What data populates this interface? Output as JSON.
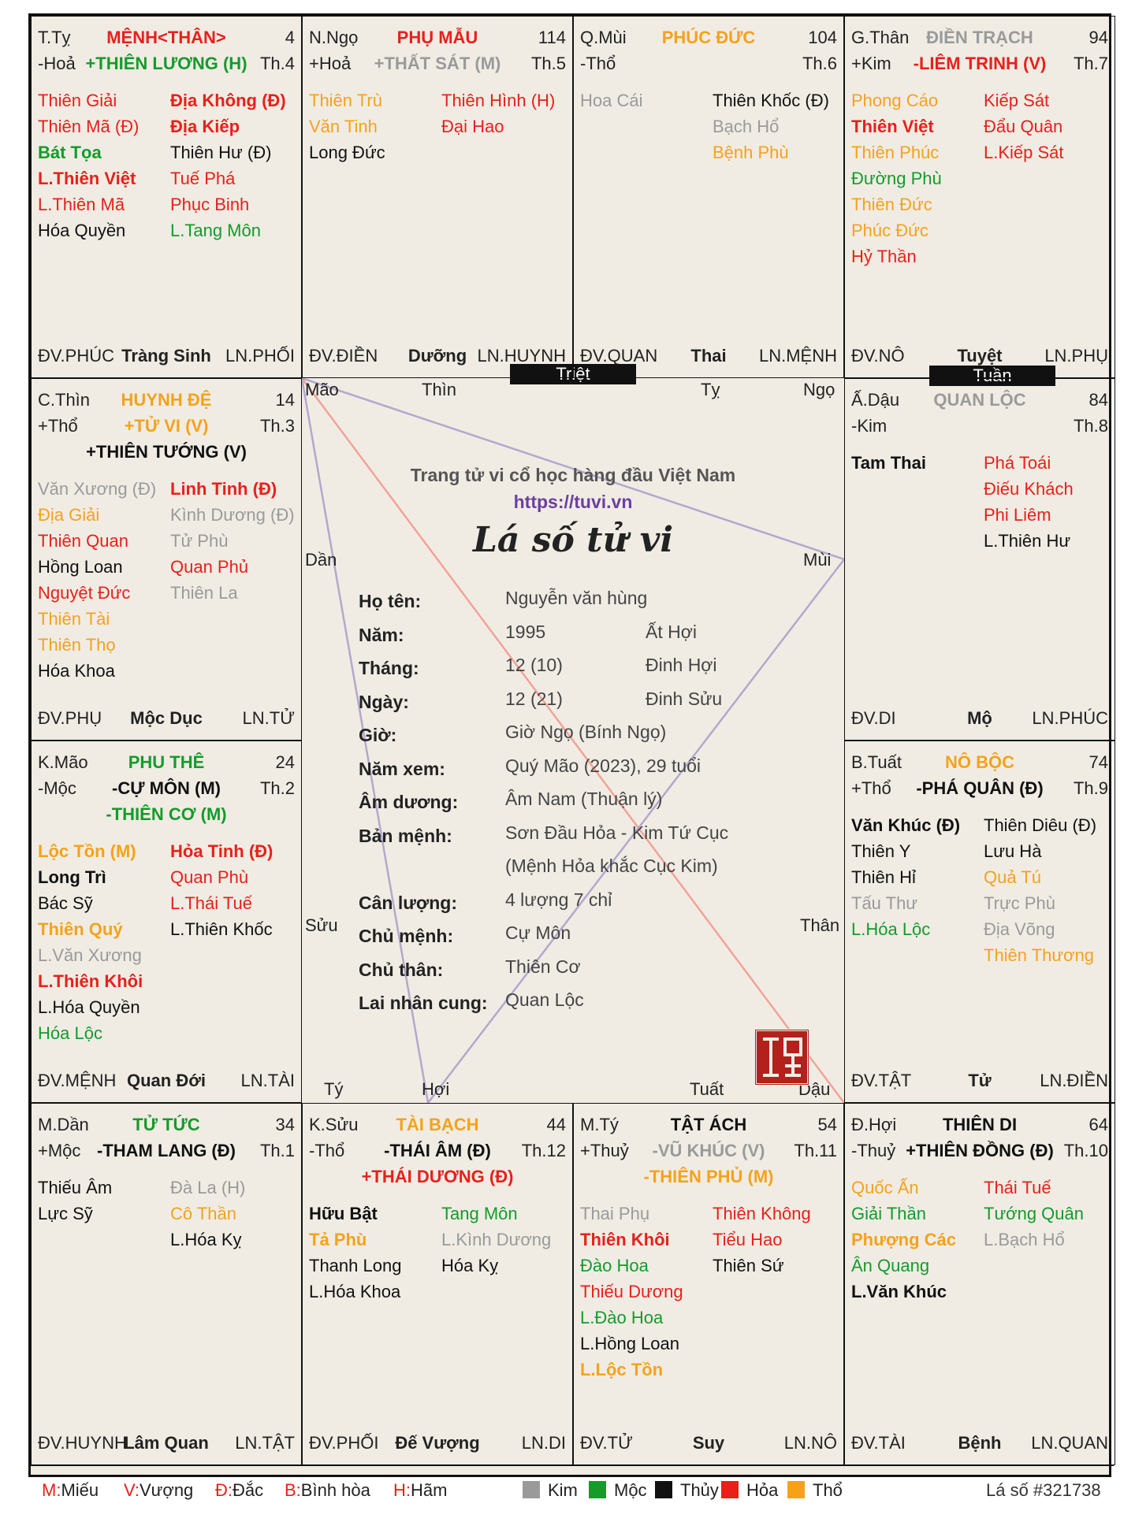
{
  "colors": {
    "red": "#e8201a",
    "green": "#149b2a",
    "black": "#111111",
    "gray": "#9a9a9a",
    "orange": "#f5a21a"
  },
  "palaces": [
    {
      "id": "ty",
      "pos": [
        0,
        0
      ],
      "ho": "T.Tỵ",
      "elem": "-Hoả",
      "name": "MỆNH<THÂN>",
      "name_color": "red",
      "num": "4",
      "major": [
        {
          "t": "+THIÊN LƯƠNG (H)",
          "c": "green"
        }
      ],
      "th": "Th.4",
      "left": [
        {
          "t": "Thiên Giải",
          "c": "red"
        },
        {
          "t": "Thiên Mã (Đ)",
          "c": "red"
        },
        {
          "t": "Bát Tọa",
          "c": "green",
          "b": true
        },
        {
          "t": "L.Thiên Việt",
          "c": "red",
          "b": true
        },
        {
          "t": "L.Thiên Mã",
          "c": "red"
        },
        {
          "t": "Hóa Quyền",
          "c": "black"
        }
      ],
      "right": [
        {
          "t": "Địa Không (Đ)",
          "c": "red",
          "b": true
        },
        {
          "t": "Địa Kiếp",
          "c": "red",
          "b": true
        },
        {
          "t": "Thiên Hư (Đ)",
          "c": "black"
        },
        {
          "t": "Tuế Phá",
          "c": "red"
        },
        {
          "t": "Phục Binh",
          "c": "red"
        },
        {
          "t": "L.Tang Môn",
          "c": "green"
        }
      ],
      "dv": "ĐV.PHÚC",
      "stage": "Tràng Sinh",
      "ln": "LN.PHỐI"
    },
    {
      "id": "ngo",
      "pos": [
        1,
        0
      ],
      "ho": "N.Ngọ",
      "elem": "+Hoả",
      "name": "PHỤ MẪU",
      "name_color": "red",
      "num": "114",
      "major": [
        {
          "t": "+THẤT SÁT (M)",
          "c": "gray"
        }
      ],
      "th": "Th.5",
      "left": [
        {
          "t": "Thiên Trù",
          "c": "orange"
        },
        {
          "t": "Văn Tinh",
          "c": "orange"
        },
        {
          "t": "Long Đức",
          "c": "black"
        }
      ],
      "right": [
        {
          "t": "Thiên Hình (H)",
          "c": "red"
        },
        {
          "t": "Đại Hao",
          "c": "red"
        }
      ],
      "dv": "ĐV.ĐIỀN",
      "stage": "Dưỡng",
      "ln": "LN.HUYNH"
    },
    {
      "id": "mui",
      "pos": [
        2,
        0
      ],
      "ho": "Q.Mùi",
      "elem": "-Thổ",
      "name": "PHÚC ĐỨC",
      "name_color": "orange",
      "num": "104",
      "major": [],
      "th": "Th.6",
      "left": [
        {
          "t": "Hoa Cái",
          "c": "gray"
        }
      ],
      "right": [
        {
          "t": "Thiên Khốc (Đ)",
          "c": "black"
        },
        {
          "t": "Bạch Hổ",
          "c": "gray"
        },
        {
          "t": "Bệnh Phù",
          "c": "orange"
        }
      ],
      "dv": "ĐV.QUAN",
      "stage": "Thai",
      "ln": "LN.MỆNH"
    },
    {
      "id": "than",
      "pos": [
        3,
        0
      ],
      "ho": "G.Thân",
      "elem": "+Kim",
      "name": "ĐIỀN TRẠCH",
      "name_color": "gray",
      "num": "94",
      "major": [
        {
          "t": "-LIÊM TRINH (V)",
          "c": "red"
        }
      ],
      "th": "Th.7",
      "left": [
        {
          "t": "Phong Cáo",
          "c": "orange"
        },
        {
          "t": "Thiên Việt",
          "c": "red",
          "b": true
        },
        {
          "t": "Thiên Phúc",
          "c": "orange"
        },
        {
          "t": "Đường Phù",
          "c": "green"
        },
        {
          "t": "Thiên Đức",
          "c": "orange"
        },
        {
          "t": "Phúc Đức",
          "c": "orange"
        },
        {
          "t": "Hỷ Thần",
          "c": "red"
        }
      ],
      "right": [
        {
          "t": "Kiếp Sát",
          "c": "red"
        },
        {
          "t": "Đẩu Quân",
          "c": "red"
        },
        {
          "t": "L.Kiếp Sát",
          "c": "red"
        }
      ],
      "dv": "ĐV.NÔ",
      "stage": "Tuyệt",
      "ln": "LN.PHỤ"
    },
    {
      "id": "thin",
      "pos": [
        0,
        1
      ],
      "ho": "C.Thìn",
      "elem": "+Thổ",
      "name": "HUYNH ĐỆ",
      "name_color": "orange",
      "num": "14",
      "major": [
        {
          "t": "+TỬ VI (V)",
          "c": "orange"
        },
        {
          "t": "+THIÊN TƯỚNG (V)",
          "c": "black"
        }
      ],
      "th": "Th.3",
      "left": [
        {
          "t": "Văn Xương (Đ)",
          "c": "gray"
        },
        {
          "t": "Địa Giải",
          "c": "orange"
        },
        {
          "t": "Thiên Quan",
          "c": "red"
        },
        {
          "t": "Hồng Loan",
          "c": "black"
        },
        {
          "t": "Nguyệt Đức",
          "c": "red"
        },
        {
          "t": "Thiên Tài",
          "c": "orange"
        },
        {
          "t": "Thiên Thọ",
          "c": "orange"
        },
        {
          "t": "Hóa Khoa",
          "c": "black"
        }
      ],
      "right": [
        {
          "t": "Linh Tinh (Đ)",
          "c": "red",
          "b": true
        },
        {
          "t": "Kình Dương (Đ)",
          "c": "gray"
        },
        {
          "t": "Tử Phù",
          "c": "gray"
        },
        {
          "t": "Quan Phủ",
          "c": "red"
        },
        {
          "t": "Thiên La",
          "c": "gray"
        }
      ],
      "dv": "ĐV.PHỤ",
      "stage": "Mộc Dục",
      "ln": "LN.TỬ"
    },
    {
      "id": "dau",
      "pos": [
        3,
        1
      ],
      "ho": "Ấ.Dậu",
      "elem": "-Kim",
      "name": "QUAN LỘC",
      "name_color": "gray",
      "num": "84",
      "major": [],
      "th": "Th.8",
      "left": [
        {
          "t": "Tam Thai",
          "c": "black",
          "b": true
        }
      ],
      "right": [
        {
          "t": "Phá Toái",
          "c": "red"
        },
        {
          "t": "Điếu Khách",
          "c": "red"
        },
        {
          "t": "Phi Liêm",
          "c": "red"
        },
        {
          "t": "L.Thiên Hư",
          "c": "black"
        }
      ],
      "dv": "ĐV.DI",
      "stage": "Mộ",
      "ln": "LN.PHÚC"
    },
    {
      "id": "mao",
      "pos": [
        0,
        2
      ],
      "ho": "K.Mão",
      "elem": "-Mộc",
      "name": "PHU THÊ",
      "name_color": "green",
      "num": "24",
      "major": [
        {
          "t": "-CỰ MÔN (M)",
          "c": "black"
        },
        {
          "t": "-THIÊN CƠ (M)",
          "c": "green"
        }
      ],
      "th": "Th.2",
      "left": [
        {
          "t": "Lộc Tồn (M)",
          "c": "orange",
          "b": true
        },
        {
          "t": "Long Trì",
          "c": "black",
          "b": true
        },
        {
          "t": "Bác Sỹ",
          "c": "black"
        },
        {
          "t": "Thiên Quý",
          "c": "orange",
          "b": true
        },
        {
          "t": "L.Văn Xương",
          "c": "gray"
        },
        {
          "t": "L.Thiên Khôi",
          "c": "red",
          "b": true
        },
        {
          "t": "L.Hóa Quyền",
          "c": "black"
        },
        {
          "t": "Hóa Lộc",
          "c": "green"
        }
      ],
      "right": [
        {
          "t": "Hỏa Tinh (Đ)",
          "c": "red",
          "b": true
        },
        {
          "t": "Quan Phù",
          "c": "red"
        },
        {
          "t": "L.Thái Tuế",
          "c": "red"
        },
        {
          "t": "L.Thiên Khốc",
          "c": "black"
        }
      ],
      "dv": "ĐV.MỆNH",
      "stage": "Quan Đới",
      "ln": "LN.TÀI"
    },
    {
      "id": "tuat",
      "pos": [
        3,
        2
      ],
      "ho": "B.Tuất",
      "elem": "+Thổ",
      "name": "NÔ BỘC",
      "name_color": "orange",
      "num": "74",
      "major": [
        {
          "t": "-PHÁ QUÂN (Đ)",
          "c": "black"
        }
      ],
      "th": "Th.9",
      "left": [
        {
          "t": "Văn Khúc (Đ)",
          "c": "black",
          "b": true
        },
        {
          "t": "Thiên Y",
          "c": "black"
        },
        {
          "t": "Thiên Hỉ",
          "c": "black"
        },
        {
          "t": "Tấu Thư",
          "c": "gray"
        },
        {
          "t": "L.Hóa Lộc",
          "c": "green"
        }
      ],
      "right": [
        {
          "t": "Thiên Diêu (Đ)",
          "c": "black"
        },
        {
          "t": "Lưu Hà",
          "c": "black"
        },
        {
          "t": "Quả Tú",
          "c": "orange"
        },
        {
          "t": "Trực Phù",
          "c": "gray"
        },
        {
          "t": "Địa Võng",
          "c": "gray"
        },
        {
          "t": "Thiên Thương",
          "c": "orange"
        }
      ],
      "dv": "ĐV.TẬT",
      "stage": "Tử",
      "ln": "LN.ĐIỀN"
    },
    {
      "id": "dan",
      "pos": [
        0,
        3
      ],
      "ho": "M.Dần",
      "elem": "+Mộc",
      "name": "TỬ TỨC",
      "name_color": "green",
      "num": "34",
      "major": [
        {
          "t": "-THAM LANG (Đ)",
          "c": "black"
        }
      ],
      "th": "Th.1",
      "left": [
        {
          "t": "Thiếu Âm",
          "c": "black"
        },
        {
          "t": "Lực Sỹ",
          "c": "black"
        }
      ],
      "right": [
        {
          "t": "Đà La (H)",
          "c": "gray"
        },
        {
          "t": "Cô Thần",
          "c": "orange"
        },
        {
          "t": "L.Hóa Kỵ",
          "c": "black"
        }
      ],
      "dv": "ĐV.HUYNH",
      "stage": "Lâm Quan",
      "ln": "LN.TẬT"
    },
    {
      "id": "suu",
      "pos": [
        1,
        3
      ],
      "ho": "K.Sửu",
      "elem": "-Thổ",
      "name": "TÀI BẠCH",
      "name_color": "orange",
      "num": "44",
      "major": [
        {
          "t": "-THÁI ÂM (Đ)",
          "c": "black"
        },
        {
          "t": "+THÁI DƯƠNG (Đ)",
          "c": "red"
        }
      ],
      "th": "Th.12",
      "left": [
        {
          "t": "Hữu Bật",
          "c": "black",
          "b": true
        },
        {
          "t": "Tả Phù",
          "c": "orange",
          "b": true
        },
        {
          "t": "Thanh Long",
          "c": "black"
        },
        {
          "t": "L.Hóa Khoa",
          "c": "black"
        }
      ],
      "right": [
        {
          "t": "Tang Môn",
          "c": "green"
        },
        {
          "t": "L.Kình Dương",
          "c": "gray"
        },
        {
          "t": "Hóa Kỵ",
          "c": "black"
        }
      ],
      "dv": "ĐV.PHỐI",
      "stage": "Đế Vượng",
      "ln": "LN.DI"
    },
    {
      "id": "tyy",
      "pos": [
        2,
        3
      ],
      "ho": "M.Tý",
      "elem": "+Thuỷ",
      "name": "TẬT ÁCH",
      "name_color": "black",
      "num": "54",
      "major": [
        {
          "t": "-VŨ KHÚC (V)",
          "c": "gray"
        },
        {
          "t": "-THIÊN PHỦ (M)",
          "c": "orange"
        }
      ],
      "th": "Th.11",
      "left": [
        {
          "t": "Thai Phụ",
          "c": "gray"
        },
        {
          "t": "Thiên Khôi",
          "c": "red",
          "b": true
        },
        {
          "t": "Đào Hoa",
          "c": "green"
        },
        {
          "t": "Thiếu Dương",
          "c": "red"
        },
        {
          "t": "L.Đào Hoa",
          "c": "green"
        },
        {
          "t": "L.Hồng Loan",
          "c": "black"
        },
        {
          "t": "L.Lộc Tồn",
          "c": "orange",
          "b": true
        }
      ],
      "right": [
        {
          "t": "Thiên Không",
          "c": "red"
        },
        {
          "t": "Tiểu Hao",
          "c": "red"
        },
        {
          "t": "Thiên Sứ",
          "c": "black"
        }
      ],
      "dv": "ĐV.TỬ",
      "stage": "Suy",
      "ln": "LN.NÔ"
    },
    {
      "id": "hoi",
      "pos": [
        3,
        3
      ],
      "ho": "Đ.Hợi",
      "elem": "-Thuỷ",
      "name": "THIÊN DI",
      "name_color": "black",
      "num": "64",
      "major": [
        {
          "t": "+THIÊN ĐỒNG (Đ)",
          "c": "black"
        }
      ],
      "th": "Th.10",
      "left": [
        {
          "t": "Quốc Ấn",
          "c": "orange"
        },
        {
          "t": "Giải Thần",
          "c": "green"
        },
        {
          "t": "Phượng Các",
          "c": "orange",
          "b": true
        },
        {
          "t": "Ân Quang",
          "c": "green"
        },
        {
          "t": "L.Văn Khúc",
          "c": "black",
          "b": true
        }
      ],
      "right": [
        {
          "t": "Thái Tuế",
          "c": "red"
        },
        {
          "t": "Tướng Quân",
          "c": "green"
        },
        {
          "t": "L.Bạch Hổ",
          "c": "gray"
        }
      ],
      "dv": "ĐV.TÀI",
      "stage": "Bệnh",
      "ln": "LN.QUAN"
    }
  ],
  "badges": {
    "triet": "Triệt",
    "tuan": "Tuần"
  },
  "branches": {
    "mao": "Mão",
    "thin": "Thìn",
    "ty": "Tỵ",
    "ngo": "Ngọ",
    "dan": "Dần",
    "mui": "Mùi",
    "suu": "Sửu",
    "than": "Thân",
    "ty2": "Tý",
    "hoi": "Hợi",
    "tuat": "Tuất",
    "dau": "Dậu"
  },
  "center": {
    "site_title": "Trang tử vi cổ học hàng đầu Việt Nam",
    "site_url": "https://tuvi.vn",
    "chart_title": "Lá số tử vi",
    "stamp": "Tử Vi",
    "rows": [
      {
        "label": "Họ tên:",
        "value": "Nguyễn văn hùng",
        "extra": ""
      },
      {
        "label": "Năm:",
        "value": "1995",
        "extra": "Ất Hợi"
      },
      {
        "label": "Tháng:",
        "value": "12 (10)",
        "extra": "Đinh Hợi"
      },
      {
        "label": "Ngày:",
        "value": "12 (21)",
        "extra": "Đinh Sửu"
      },
      {
        "label": "Giờ:",
        "value": "Giờ Ngọ (Bính Ngọ)",
        "extra": ""
      },
      {
        "label": "Năm xem:",
        "value": "Quý Mão (2023), 29 tuổi",
        "extra": ""
      },
      {
        "label": "Âm dương:",
        "value": "Âm Nam (Thuận lý)",
        "extra": ""
      },
      {
        "label": "Bản mệnh:",
        "value": "Sơn Đầu Hỏa - Kim Tứ Cục",
        "extra": ""
      },
      {
        "label": "",
        "value": "(Mệnh Hỏa khắc Cục Kim)",
        "extra": ""
      },
      {
        "label": "Cân lượng:",
        "value": "4 lượng 7 chỉ",
        "extra": ""
      },
      {
        "label": "Chủ mệnh:",
        "value": "Cự Môn",
        "extra": ""
      },
      {
        "label": "Chủ thân:",
        "value": "Thiên Cơ",
        "extra": ""
      },
      {
        "label": "Lai nhân cung:",
        "value": "Quan Lộc",
        "extra": ""
      }
    ]
  },
  "footer": {
    "abbrevs": [
      {
        "k": "M:",
        "v": "Miếu"
      },
      {
        "k": "V:",
        "v": "Vượng"
      },
      {
        "k": "Đ:",
        "v": "Đắc"
      },
      {
        "k": "B:",
        "v": "Bình hòa"
      },
      {
        "k": "H:",
        "v": "Hãm"
      }
    ],
    "elements": [
      {
        "name": "Kim",
        "c": "gray"
      },
      {
        "name": "Mộc",
        "c": "green"
      },
      {
        "name": "Thủy",
        "c": "black"
      },
      {
        "name": "Hỏa",
        "c": "red"
      },
      {
        "name": "Thổ",
        "c": "orange"
      }
    ],
    "chart_id": "Lá số #321738"
  }
}
